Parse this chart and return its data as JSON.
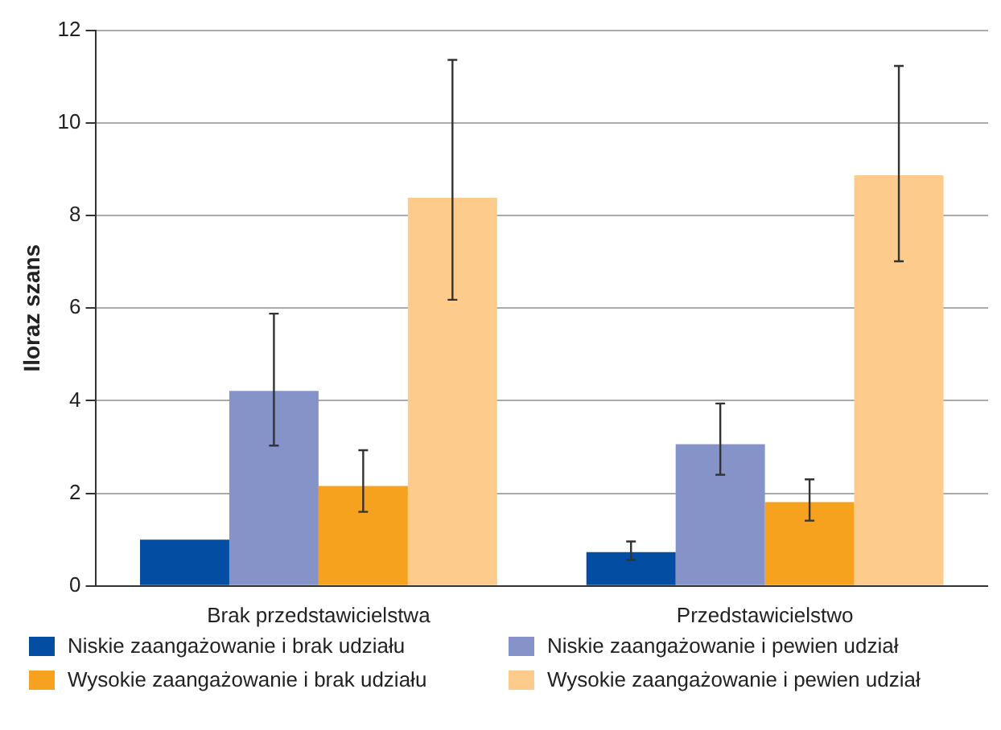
{
  "chart_data": {
    "type": "bar",
    "ylabel": "Iloraz szans",
    "categories": [
      "Brak przedstawicielstwa",
      "Przedstawicielstwo"
    ],
    "series": [
      {
        "name": "Niskie zaangażowanie i brak udziału",
        "color": "#034ea2",
        "values": [
          1.0,
          0.73
        ],
        "errors": [
          null,
          [
            0.56,
            0.96
          ]
        ]
      },
      {
        "name": "Niskie zaangażowanie i pewien udział",
        "color": "#8593c8",
        "values": [
          4.21,
          3.06
        ],
        "errors": [
          [
            3.03,
            5.88
          ],
          [
            2.4,
            3.94
          ]
        ]
      },
      {
        "name": "Wysokie zaangażowanie i brak udziału",
        "color": "#f7a21e",
        "values": [
          2.16,
          1.81
        ],
        "errors": [
          [
            1.6,
            2.93
          ],
          [
            1.41,
            2.3
          ]
        ]
      },
      {
        "name": "Wysokie zaangażowanie i pewien udział",
        "color": "#fdcb8b",
        "values": [
          8.38,
          8.87
        ],
        "errors": [
          [
            6.18,
            11.36
          ],
          [
            7.01,
            11.23
          ]
        ]
      }
    ],
    "ylim": [
      0,
      12
    ],
    "yticks": [
      0,
      2,
      4,
      6,
      8,
      10,
      12
    ],
    "grid": "y",
    "legend": "bottom"
  }
}
